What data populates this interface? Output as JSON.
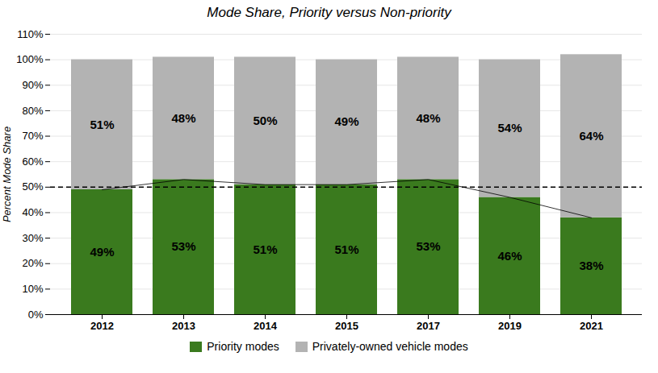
{
  "chart_data": {
    "type": "bar",
    "stacked": true,
    "title": "Mode Share, Priority versus Non-priority",
    "ylabel": "Percent Mode Share",
    "categories": [
      "2012",
      "2013",
      "2014",
      "2015",
      "2017",
      "2019",
      "2021"
    ],
    "series": [
      {
        "name": "Priority modes",
        "color": "#3a7a1e",
        "values": [
          49,
          53,
          51,
          51,
          53,
          46,
          38
        ],
        "value_labels": [
          "49%",
          "53%",
          "51%",
          "51%",
          "53%",
          "46%",
          "38%"
        ]
      },
      {
        "name": "Privately-owned vehicle modes",
        "color": "#b3b3b3",
        "values": [
          51,
          48,
          50,
          49,
          48,
          54,
          64
        ],
        "value_labels": [
          "51%",
          "48%",
          "50%",
          "49%",
          "48%",
          "54%",
          "64%"
        ]
      }
    ],
    "ylim": [
      0,
      110
    ],
    "yticks": [
      {
        "value": 0,
        "label": "0%"
      },
      {
        "value": 10,
        "label": "10%"
      },
      {
        "value": 20,
        "label": "20%"
      },
      {
        "value": 30,
        "label": "30%"
      },
      {
        "value": 40,
        "label": "40%"
      },
      {
        "value": 50,
        "label": "50%"
      },
      {
        "value": 60,
        "label": "60%"
      },
      {
        "value": 70,
        "label": "70%"
      },
      {
        "value": 80,
        "label": "80%"
      },
      {
        "value": 90,
        "label": "90%"
      },
      {
        "value": 100,
        "label": "100%"
      },
      {
        "value": 110,
        "label": "110%"
      }
    ],
    "reference_line": {
      "y": 50,
      "line_style": "dashed"
    },
    "data_labels": true,
    "grid": true,
    "legend": "bottom"
  }
}
